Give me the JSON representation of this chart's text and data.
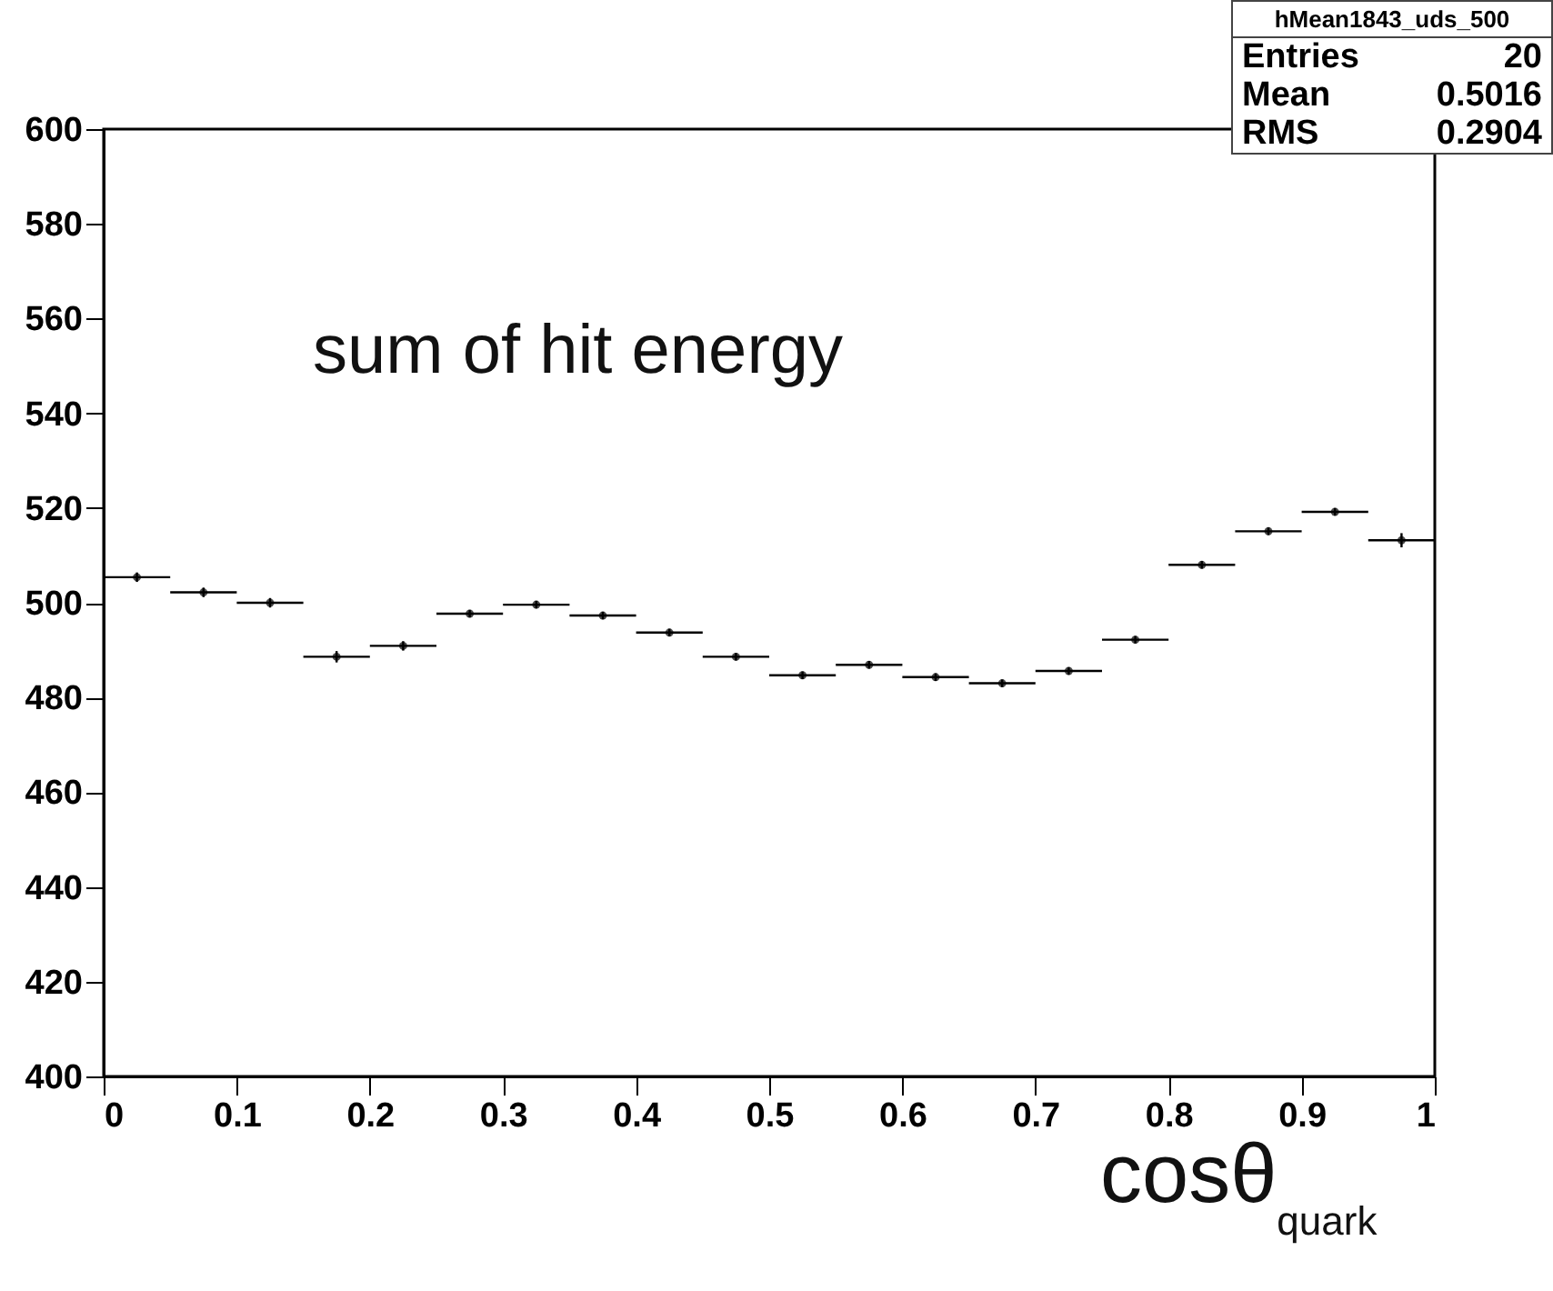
{
  "chart_data": {
    "type": "scatter",
    "title": "sum of hit energy",
    "xlabel": "cosθ$_{quark}$",
    "x": [
      0.025,
      0.075,
      0.125,
      0.175,
      0.225,
      0.275,
      0.325,
      0.375,
      0.425,
      0.475,
      0.525,
      0.575,
      0.625,
      0.675,
      0.725,
      0.775,
      0.825,
      0.875,
      0.925,
      0.975
    ],
    "values": [
      505.4,
      502.2,
      500,
      488.6,
      490.9,
      497.7,
      499.6,
      497.3,
      493.7,
      488.6,
      484.7,
      486.9,
      484.3,
      483,
      485.6,
      492.2,
      508,
      515.1,
      519.2,
      513.2
    ],
    "errors": [
      1,
      1,
      1,
      1.2,
      1,
      0.8,
      0.8,
      0.8,
      0.8,
      0.8,
      0.8,
      0.8,
      0.8,
      0.8,
      0.8,
      0.8,
      0.8,
      0.8,
      0.8,
      1.5
    ],
    "xerrors": [
      0.025,
      0.025,
      0.025,
      0.025,
      0.025,
      0.025,
      0.025,
      0.025,
      0.025,
      0.025,
      0.025,
      0.025,
      0.025,
      0.025,
      0.025,
      0.025,
      0.025,
      0.025,
      0.025,
      0.025
    ],
    "color": "#000000",
    "xlim": [
      0,
      1
    ],
    "xticks": [
      0,
      0.1,
      0.2,
      0.3,
      0.4,
      0.5,
      0.6,
      0.7,
      0.8,
      0.9,
      1
    ],
    "ylim": [
      400,
      600
    ],
    "yticks": [
      400,
      420,
      440,
      460,
      480,
      500,
      520,
      540,
      560,
      580,
      600
    ],
    "grid": false,
    "annotations": [
      "hMean1843_uds_500",
      "Entries 20",
      "Mean 0.5016",
      "RMS 0.2904"
    ]
  }
}
